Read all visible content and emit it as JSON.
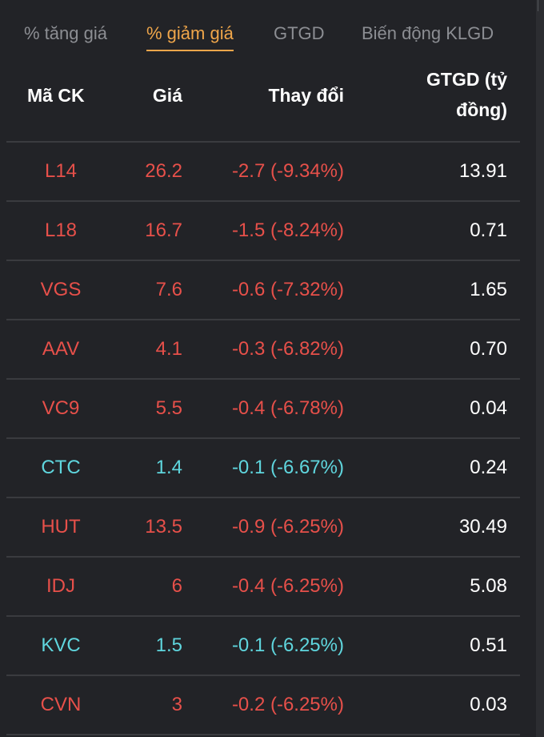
{
  "tabs": [
    {
      "label": "% tăng giá",
      "active": false
    },
    {
      "label": "% giảm giá",
      "active": true
    },
    {
      "label": "GTGD",
      "active": false
    },
    {
      "label": "Biến động KLGD",
      "active": false
    }
  ],
  "columns": {
    "symbol": "Mã CK",
    "price": "Giá",
    "change": "Thay đổi",
    "value_line1": "GTGD (tỷ",
    "value_line2": "đồng)"
  },
  "colors": {
    "down": "#e7504a",
    "floor": "#5fd6de",
    "active_tab": "#f0a64a",
    "background": "#222327"
  },
  "rows": [
    {
      "symbol": "L14",
      "price": "26.2",
      "change": "-2.7 (-9.34%)",
      "value": "13.91",
      "status": "down"
    },
    {
      "symbol": "L18",
      "price": "16.7",
      "change": "-1.5 (-8.24%)",
      "value": "0.71",
      "status": "down"
    },
    {
      "symbol": "VGS",
      "price": "7.6",
      "change": "-0.6 (-7.32%)",
      "value": "1.65",
      "status": "down"
    },
    {
      "symbol": "AAV",
      "price": "4.1",
      "change": "-0.3 (-6.82%)",
      "value": "0.70",
      "status": "down"
    },
    {
      "symbol": "VC9",
      "price": "5.5",
      "change": "-0.4 (-6.78%)",
      "value": "0.04",
      "status": "down"
    },
    {
      "symbol": "CTC",
      "price": "1.4",
      "change": "-0.1 (-6.67%)",
      "value": "0.24",
      "status": "floor"
    },
    {
      "symbol": "HUT",
      "price": "13.5",
      "change": "-0.9 (-6.25%)",
      "value": "30.49",
      "status": "down"
    },
    {
      "symbol": "IDJ",
      "price": "6",
      "change": "-0.4 (-6.25%)",
      "value": "5.08",
      "status": "down"
    },
    {
      "symbol": "KVC",
      "price": "1.5",
      "change": "-0.1 (-6.25%)",
      "value": "0.51",
      "status": "floor"
    },
    {
      "symbol": "CVN",
      "price": "3",
      "change": "-0.2 (-6.25%)",
      "value": "0.03",
      "status": "down"
    }
  ]
}
